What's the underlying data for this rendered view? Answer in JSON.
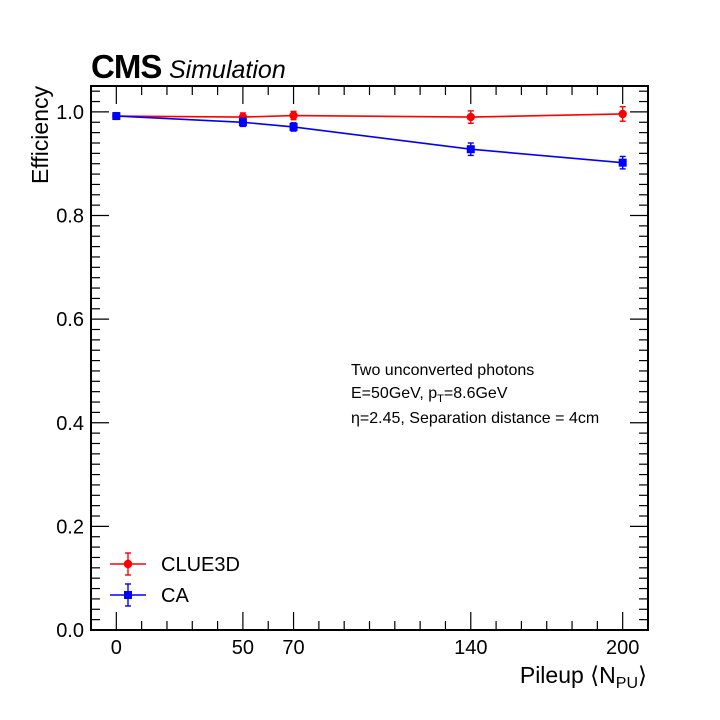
{
  "header": {
    "experiment": "CMS",
    "tag": "Simulation"
  },
  "annotation": {
    "line1": "Two unconverted photons",
    "line2_prefix": "E=50GeV, p",
    "line2_sub": "T",
    "line2_suffix": "=8.6GeV",
    "line3": "η=2.45, Separation distance = 4cm"
  },
  "chart_data": {
    "type": "line",
    "title": "",
    "xlabel_main": "Pileup ⟨N",
    "xlabel_sub": "PU",
    "xlabel_close": "⟩",
    "ylabel": "Efficiency",
    "xlim": [
      -10,
      210
    ],
    "ylim": [
      0.0,
      1.05
    ],
    "x_ticks": [
      0,
      50,
      70,
      140,
      200
    ],
    "x_tick_labels": [
      "0",
      "50",
      "70",
      "140",
      "200"
    ],
    "y_ticks": [
      0.0,
      0.2,
      0.4,
      0.6,
      0.8,
      1.0
    ],
    "y_tick_labels": [
      "0.0",
      "0.2",
      "0.4",
      "0.6",
      "0.8",
      "1.0"
    ],
    "legend_position": "bottom-left",
    "x": [
      0,
      50,
      70,
      140,
      200
    ],
    "series": [
      {
        "name": "CLUE3D",
        "color": "#ff0000",
        "marker": "circle",
        "values": [
          0.992,
          0.99,
          0.993,
          0.99,
          0.996
        ],
        "errors": [
          0.004,
          0.008,
          0.008,
          0.012,
          0.014
        ]
      },
      {
        "name": "CA",
        "color": "#0000ff",
        "marker": "square",
        "values": [
          0.992,
          0.98,
          0.971,
          0.928,
          0.902
        ],
        "errors": [
          0.004,
          0.008,
          0.008,
          0.012,
          0.012
        ]
      }
    ]
  }
}
